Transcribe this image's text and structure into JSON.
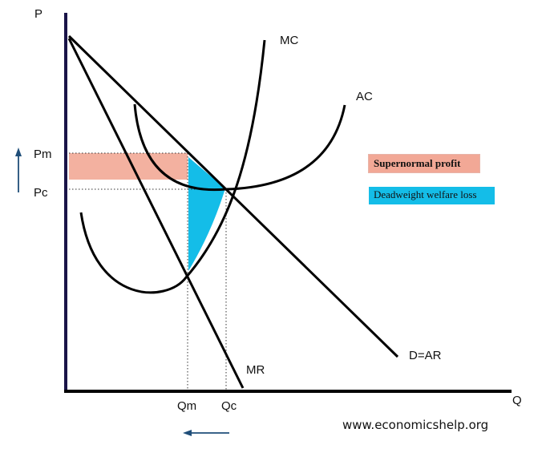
{
  "axes": {
    "y_label": "P",
    "x_label": "Q"
  },
  "price_labels": {
    "pm": "Pm",
    "pc": "Pc"
  },
  "quantity_labels": {
    "qm": "Qm",
    "qc": "Qc"
  },
  "curve_labels": {
    "mc": "MC",
    "ac": "AC",
    "mr": "MR",
    "demand": "D=AR"
  },
  "legend": {
    "supernormal_profit": "Supernormal profit",
    "deadweight_loss": "Deadweight welfare loss"
  },
  "colors": {
    "axis": "#1a1448",
    "profit_fill": "#f2a896",
    "deadweight_fill": "#14bde8",
    "arrow": "#1f4e79"
  },
  "arrows": {
    "price_arrow": "up-arrow",
    "quantity_arrow": "left-arrow"
  },
  "website": "www.economicshelp.org"
}
